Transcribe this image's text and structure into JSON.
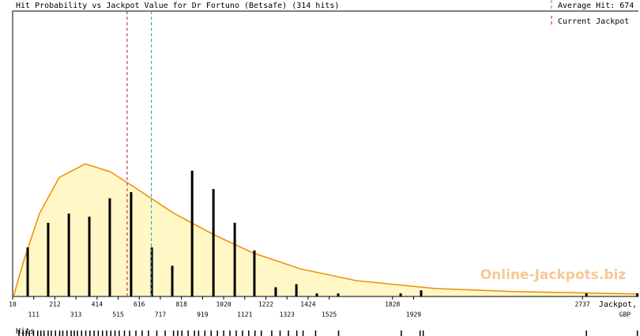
{
  "chart_data": {
    "type": "bar",
    "title": "Hit Probability vs Jackpot Value for Dr Fortuno (Betsafe) (314 hits)",
    "average_hit": {
      "value": 674,
      "label": "Average Hit: 674",
      "color": "#3399bb"
    },
    "current_jackpot": {
      "value": 558,
      "label": "Current Jackpot",
      "color": "#aa2233"
    },
    "watermark": "Online-Jackpots.biz",
    "x_label": [
      "Jackpot,",
      "GBP"
    ],
    "rug_label": "Hits",
    "color": "#000000",
    "x": [
      82,
      180,
      279,
      377,
      475,
      577,
      676,
      774,
      869,
      971,
      1073,
      1167,
      1269,
      1368,
      1466,
      1568,
      1867,
      1965,
      2756,
      3000
    ],
    "values": [
      16,
      24,
      27,
      26,
      32,
      34,
      16,
      10,
      41,
      35,
      24,
      15,
      3,
      4,
      1,
      1,
      1,
      2,
      1,
      1
    ],
    "curve": {
      "color": "#f08c00",
      "fill": "#fff7c6",
      "x": [
        14,
        63,
        139,
        233,
        358,
        479,
        608,
        782,
        971,
        1160,
        1387,
        1651,
        2030,
        2408,
        3005
      ],
      "y": [
        0,
        11.6,
        27.1,
        38.8,
        43.2,
        40.6,
        34.9,
        27.1,
        20.2,
        14.2,
        9.0,
        5.2,
        2.6,
        1.6,
        0.8
      ]
    },
    "hits": [
      40,
      60,
      75,
      90,
      110,
      130,
      145,
      160,
      180,
      195,
      215,
      235,
      250,
      270,
      290,
      305,
      320,
      340,
      360,
      380,
      400,
      420,
      440,
      460,
      480,
      500,
      520,
      545,
      570,
      600,
      630,
      660,
      700,
      740,
      780,
      800,
      820,
      850,
      880,
      900,
      930,
      960,
      990,
      1020,
      1050,
      1080,
      1110,
      1140,
      1170,
      1200,
      1250,
      1290,
      1330,
      1370,
      1400,
      1460,
      1570,
      1870,
      1960,
      1975,
      2756,
      3000
    ],
    "xlim": [
      10,
      3005
    ],
    "ylim": [
      0,
      93
    ],
    "xticks": [
      10,
      111,
      212,
      313,
      414,
      515,
      616,
      717,
      818,
      919,
      1020,
      1121,
      1222,
      1323,
      1424,
      1525,
      1828,
      1929,
      2737
    ]
  }
}
